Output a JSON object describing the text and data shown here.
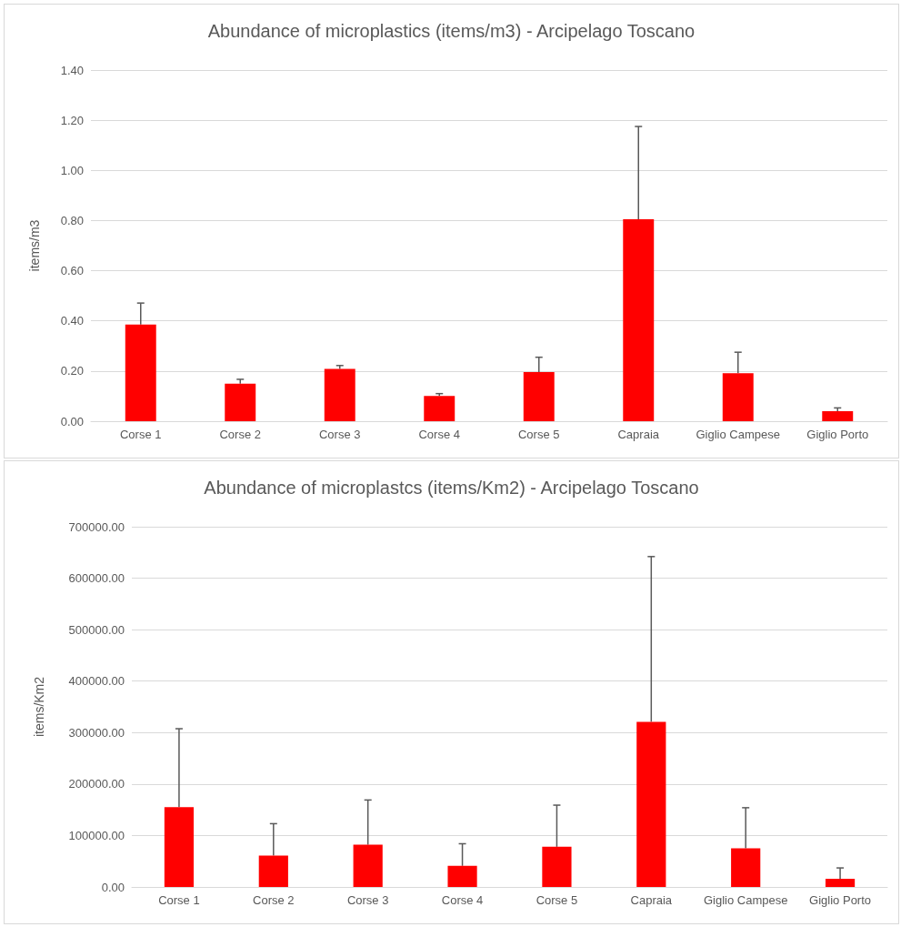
{
  "chart_data": [
    {
      "type": "bar",
      "title": "Abundance of microplastics (items/m3) - Arcipelago Toscano",
      "ylabel": "items/m3",
      "categories": [
        "Corse 1",
        "Corse 2",
        "Corse 3",
        "Corse 4",
        "Corse 5",
        "Capraia",
        "Giglio Campese",
        "Giglio Porto"
      ],
      "values": [
        0.385,
        0.15,
        0.209,
        0.101,
        0.196,
        0.805,
        0.191,
        0.04
      ],
      "errors": [
        [
          0.385,
          0.471
        ],
        [
          0.15,
          0.167
        ],
        [
          0.209,
          0.222
        ],
        [
          0.101,
          0.11
        ],
        [
          0.196,
          0.255
        ],
        [
          0.805,
          1.175
        ],
        [
          0.191,
          0.275
        ],
        [
          0.04,
          0.053
        ]
      ],
      "color": "#ff0000",
      "ylim": [
        0,
        1.4
      ],
      "yticks": [
        {
          "value": 0,
          "label": "0.00"
        },
        {
          "value": 0.2,
          "label": "0.20"
        },
        {
          "value": 0.4,
          "label": "0.40"
        },
        {
          "value": 0.6,
          "label": "0.60"
        },
        {
          "value": 0.8,
          "label": "0.80"
        },
        {
          "value": 1,
          "label": "1.00"
        },
        {
          "value": 1.2,
          "label": "1.20"
        },
        {
          "value": 1.4,
          "label": "1.40"
        }
      ],
      "grid": "y"
    },
    {
      "type": "bar",
      "title": "Abundance of microplastcs (items/Km2) - Arcipelago Toscano",
      "ylabel": "items/Km2",
      "categories": [
        "Corse 1",
        "Corse 2",
        "Corse 3",
        "Corse 4",
        "Corse 5",
        "Capraia",
        "Giglio Campese",
        "Giglio Porto"
      ],
      "values": [
        155000,
        61000,
        82000,
        41000,
        78000,
        321000,
        75000,
        16000
      ],
      "errors": [
        [
          155000,
          307500
        ],
        [
          61000,
          123000
        ],
        [
          82000,
          169000
        ],
        [
          41000,
          84000
        ],
        [
          78000,
          159000
        ],
        [
          321000,
          642000
        ],
        [
          75000,
          154000
        ],
        [
          16000,
          37000
        ]
      ],
      "color": "#ff0000",
      "ylim": [
        0,
        700000
      ],
      "yticks": [
        {
          "value": 0,
          "label": "0.00"
        },
        {
          "value": 100000,
          "label": "100000.00"
        },
        {
          "value": 200000,
          "label": "200000.00"
        },
        {
          "value": 300000,
          "label": "300000.00"
        },
        {
          "value": 400000,
          "label": "400000.00"
        },
        {
          "value": 500000,
          "label": "500000.00"
        },
        {
          "value": 600000,
          "label": "600000.00"
        },
        {
          "value": 700000,
          "label": "700000.00"
        }
      ],
      "grid": "y"
    }
  ]
}
